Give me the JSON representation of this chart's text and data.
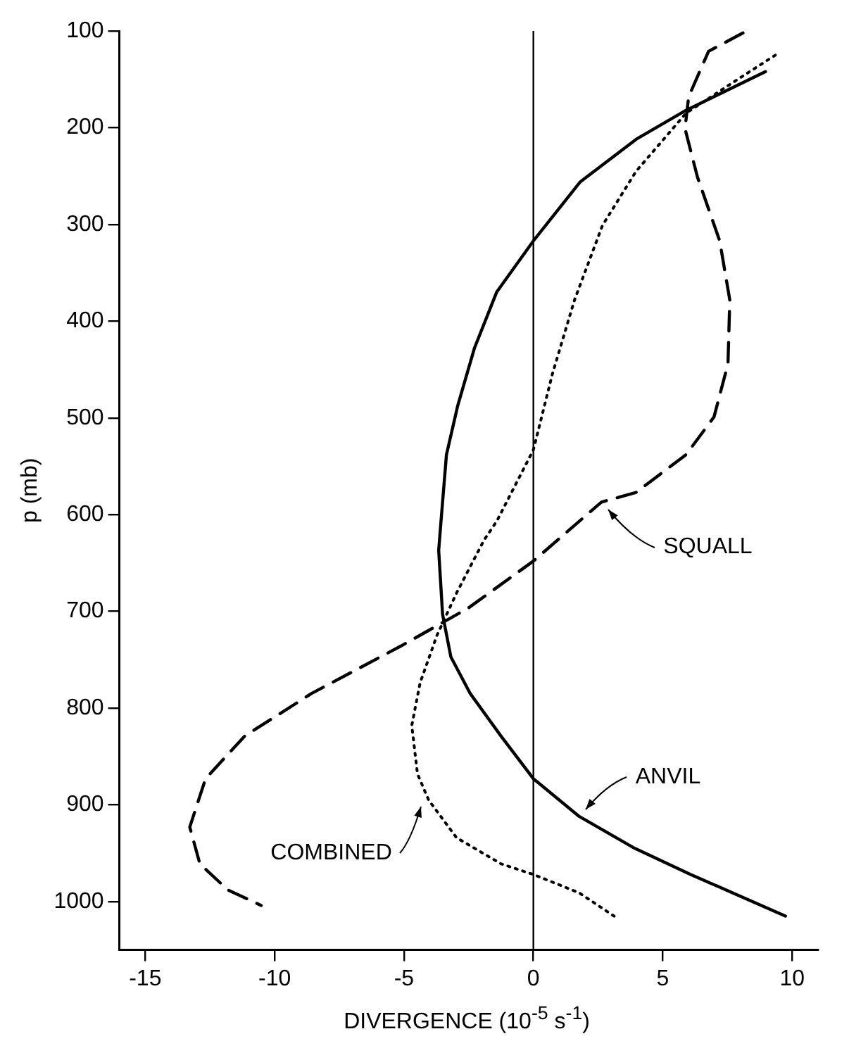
{
  "chart_data": {
    "type": "line",
    "xlabel": "DIVERGENCE (10$^{-5}$ s$^{-1}$)",
    "ylabel": "p (mb)",
    "xlim": [
      -16,
      11
    ],
    "xticks": [
      -15,
      -10,
      -5,
      0,
      5,
      10
    ],
    "ylim": [
      1050,
      100
    ],
    "yticks": [
      100,
      200,
      300,
      400,
      500,
      600,
      700,
      800,
      900,
      1000
    ],
    "grid": false,
    "legend": false,
    "marker": "none",
    "ref_lines": [
      {
        "axis": "x",
        "value": 0,
        "color": "#000000",
        "line_style": "solid"
      }
    ],
    "series": [
      {
        "name": "ANVIL",
        "color": "#000000",
        "line_style": "solid",
        "x": [
          8.97,
          5.9,
          3.97,
          1.81,
          0,
          -1.42,
          -2.28,
          -2.93,
          -3.36,
          -3.58,
          -3.66,
          -3.51,
          -3.19,
          -2.44,
          -1.25,
          0,
          1.77,
          3.92,
          6.08,
          9.74
        ],
        "values": [
          142,
          182,
          212,
          256,
          317,
          370,
          428,
          488,
          538,
          610,
          637,
          703,
          747,
          785,
          829,
          873,
          912,
          945,
          972,
          1015
        ]
      },
      {
        "name": "SQUALL",
        "color": "#000000",
        "line_style": "dashed",
        "x": [
          8.1,
          6.77,
          6.0,
          5.86,
          6.34,
          7.2,
          7.59,
          7.52,
          6.98,
          5.9,
          3.97,
          2.63,
          0,
          -2.54,
          -5.13,
          -8.58,
          -11.16,
          -12.67,
          -13.28,
          -12.89,
          -11.81,
          -10.52
        ],
        "values": [
          102,
          121,
          168,
          201,
          251,
          317,
          378,
          444,
          499,
          538,
          577,
          587,
          648,
          697,
          736,
          785,
          829,
          873,
          923,
          961,
          988,
          1004
        ]
      },
      {
        "name": "COMBINED",
        "color": "#000000",
        "line_style": "dotted",
        "x": [
          9.35,
          7.84,
          5.9,
          3.97,
          2.67,
          1.59,
          0.73,
          0,
          -1.42,
          -1.9,
          -2.97,
          -3.73,
          -4.38,
          -4.7,
          -4.48,
          -4.05,
          -2.97,
          -1.25,
          0,
          1.77,
          3.17
        ],
        "values": [
          125,
          151,
          185,
          245,
          301,
          378,
          455,
          533,
          607,
          626,
          681,
          725,
          774,
          818,
          868,
          895,
          934,
          961,
          972,
          991,
          1016
        ]
      }
    ]
  }
}
